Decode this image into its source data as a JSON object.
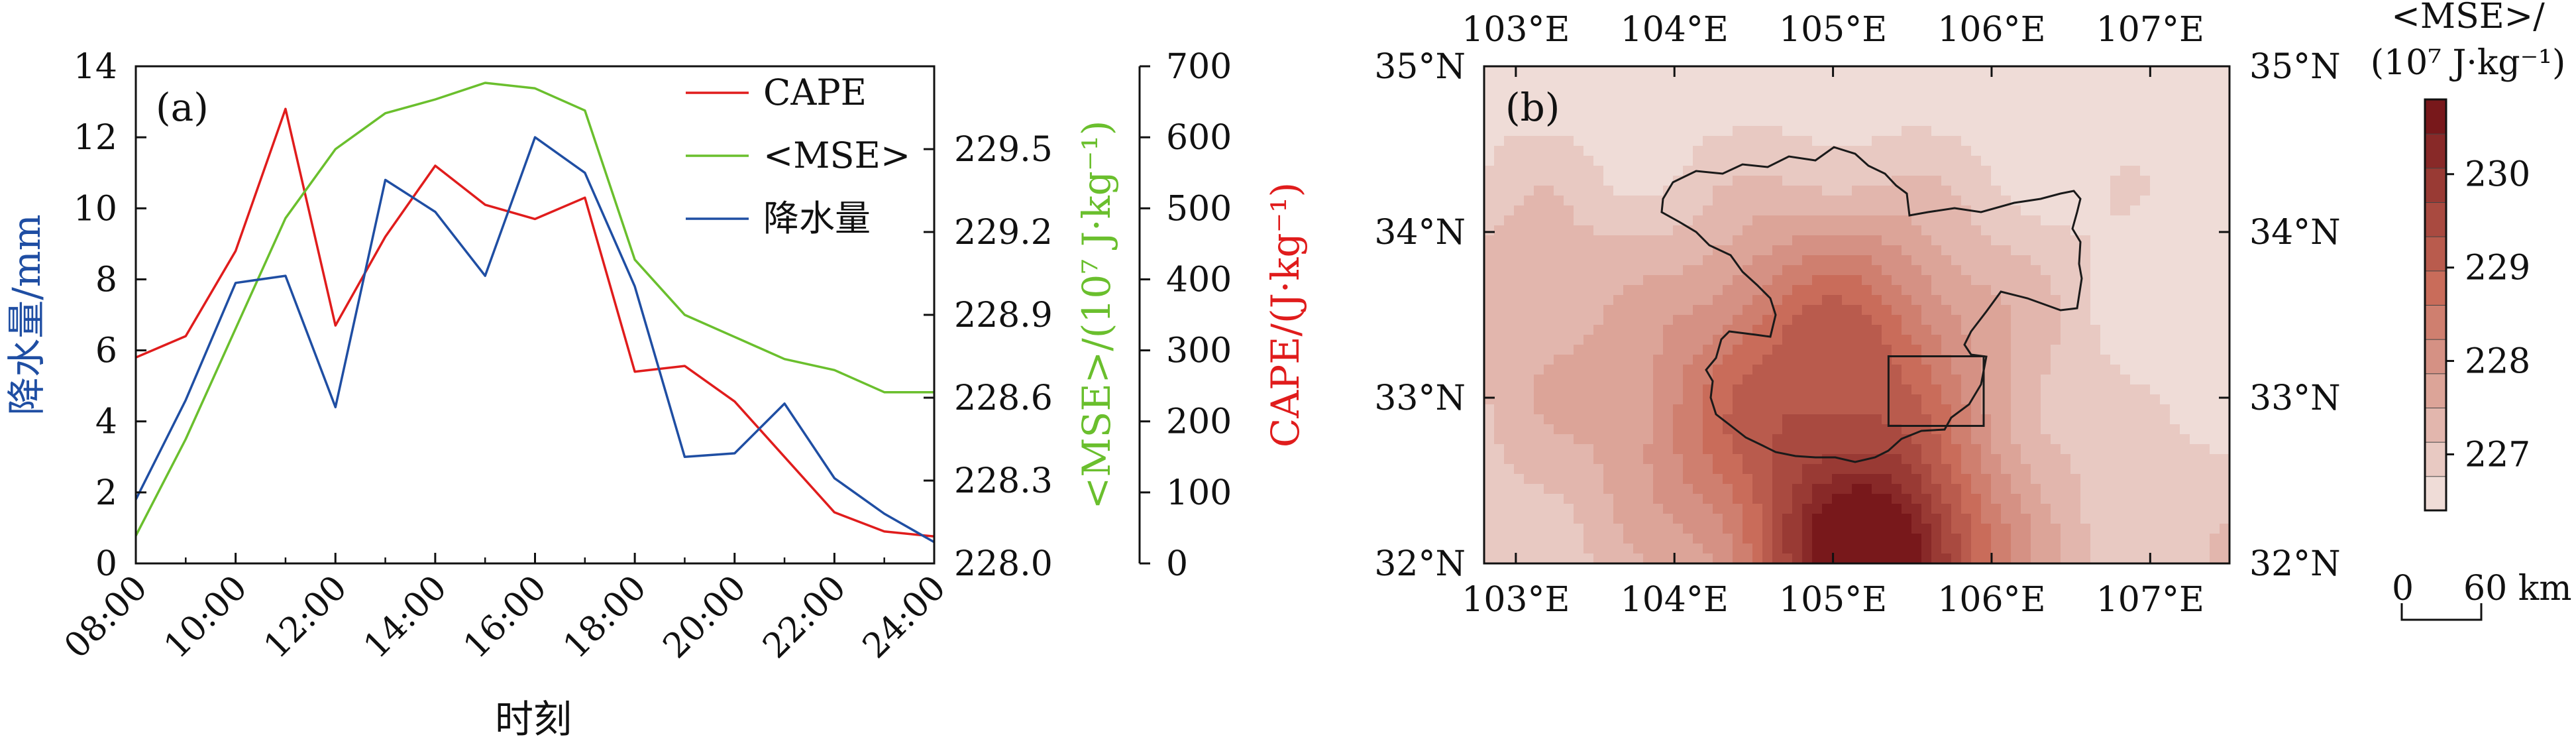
{
  "chart_data": [
    {
      "panel": "(a)",
      "type": "line",
      "xlabel": "时刻",
      "x": [
        "08:00",
        "09:00",
        "10:00",
        "11:00",
        "12:00",
        "13:00",
        "14:00",
        "15:00",
        "16:00",
        "17:00",
        "18:00",
        "19:00",
        "20:00",
        "21:00",
        "22:00",
        "23:00",
        "24:00"
      ],
      "xticks": [
        "08:00",
        "10:00",
        "12:00",
        "14:00",
        "16:00",
        "18:00",
        "20:00",
        "22:00",
        "24:00"
      ],
      "axes": {
        "left": {
          "label": "降水量/mm",
          "color": "#1f4ea3",
          "range": [
            0,
            14
          ],
          "ticks": [
            "0",
            "2",
            "4",
            "6",
            "8",
            "10",
            "12",
            "14"
          ]
        },
        "right1": {
          "label": "<MSE>/(10⁷ J·kg⁻¹)",
          "color": "#6abf2d",
          "range": [
            228.0,
            229.8
          ],
          "ticks": [
            "228.0",
            "228.3",
            "228.6",
            "228.9",
            "229.2",
            "229.5"
          ]
        },
        "right2": {
          "label": "CAPE/(J·kg⁻¹)",
          "color": "#e01c1c",
          "range": [
            0,
            700
          ],
          "ticks": [
            "0",
            "100",
            "200",
            "300",
            "400",
            "500",
            "600",
            "700"
          ]
        }
      },
      "series": [
        {
          "name": "CAPE",
          "axis": "right2",
          "color": "#e01c1c",
          "values": [
            290,
            320,
            440,
            640,
            335,
            460,
            560,
            505,
            485,
            515,
            270,
            278,
            228,
            150,
            72,
            45,
            38
          ]
        },
        {
          "name": "<MSE>",
          "axis": "right1",
          "color": "#6abf2d",
          "values": [
            228.1,
            228.45,
            228.85,
            229.25,
            229.5,
            229.63,
            229.68,
            229.74,
            229.72,
            229.64,
            229.1,
            228.9,
            228.82,
            228.74,
            228.7,
            228.62,
            228.62
          ]
        },
        {
          "name": "降水量",
          "axis": "left",
          "color": "#1f4ea3",
          "values": [
            1.8,
            4.6,
            7.9,
            8.1,
            4.4,
            10.8,
            9.9,
            8.1,
            12.0,
            11.0,
            7.8,
            3.0,
            3.1,
            4.5,
            2.4,
            1.4,
            0.6
          ]
        }
      ],
      "legend": "top-right"
    },
    {
      "panel": "(b)",
      "type": "heatmap",
      "x_range": [
        102.8,
        107.5
      ],
      "y_range": [
        32.0,
        35.0
      ],
      "xticks": [
        "103°E",
        "104°E",
        "105°E",
        "106°E",
        "107°E"
      ],
      "yticks": [
        "32°N",
        "33°N",
        "34°N",
        "35°N"
      ],
      "colorbar": {
        "title_line1": "<MSE>/",
        "title_line2": "(10⁷ J·kg⁻¹)",
        "range": [
          226.4,
          230.8
        ],
        "ticks": [
          "227",
          "228",
          "229",
          "230"
        ],
        "levels": 12
      },
      "scalebar": {
        "left_label": "0",
        "right_label": "60 km"
      },
      "box": {
        "lon": [
          105.35,
          105.95
        ],
        "lat": [
          32.83,
          33.25
        ]
      },
      "colors": {
        "low": "#f2e5e1",
        "mid": "#c86a58",
        "high": "#701015"
      }
    }
  ]
}
